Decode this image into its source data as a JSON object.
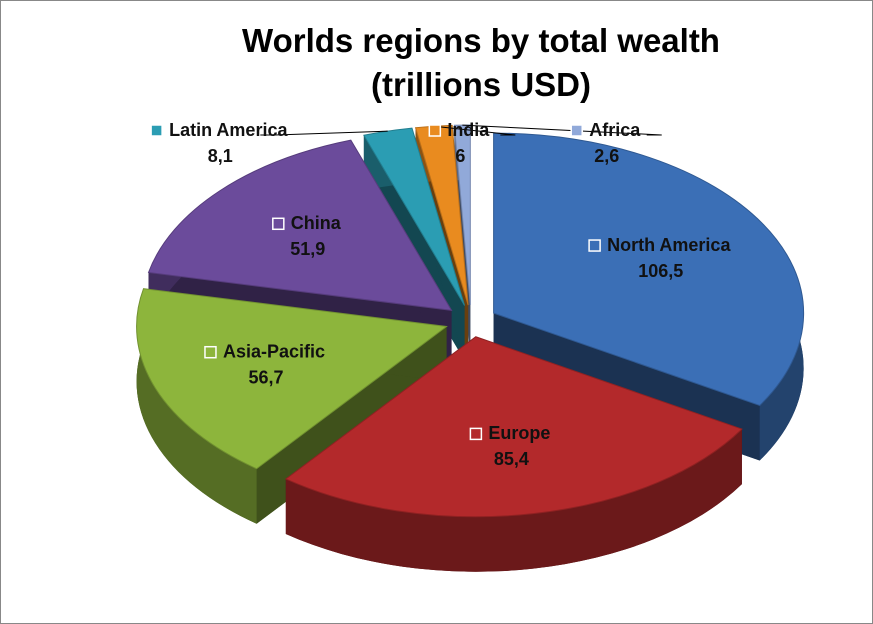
{
  "chart_data": {
    "type": "pie",
    "title": "Worlds regions by total wealth (trillions USD)",
    "categories": [
      "North America",
      "Europe",
      "Asia-Pacific",
      "China",
      "Latin America",
      "India",
      "Africa"
    ],
    "values": [
      106.5,
      85.4,
      56.7,
      51.9,
      8.1,
      6,
      2.6
    ],
    "value_labels": [
      "106,5",
      "85,4",
      "56,7",
      "51,9",
      "8,1",
      "6",
      "2,6"
    ],
    "colors": [
      "#3b6fb6",
      "#b3292b",
      "#8db53c",
      "#6b4b9b",
      "#2b9db3",
      "#e98b1f",
      "#91a9d9"
    ]
  }
}
